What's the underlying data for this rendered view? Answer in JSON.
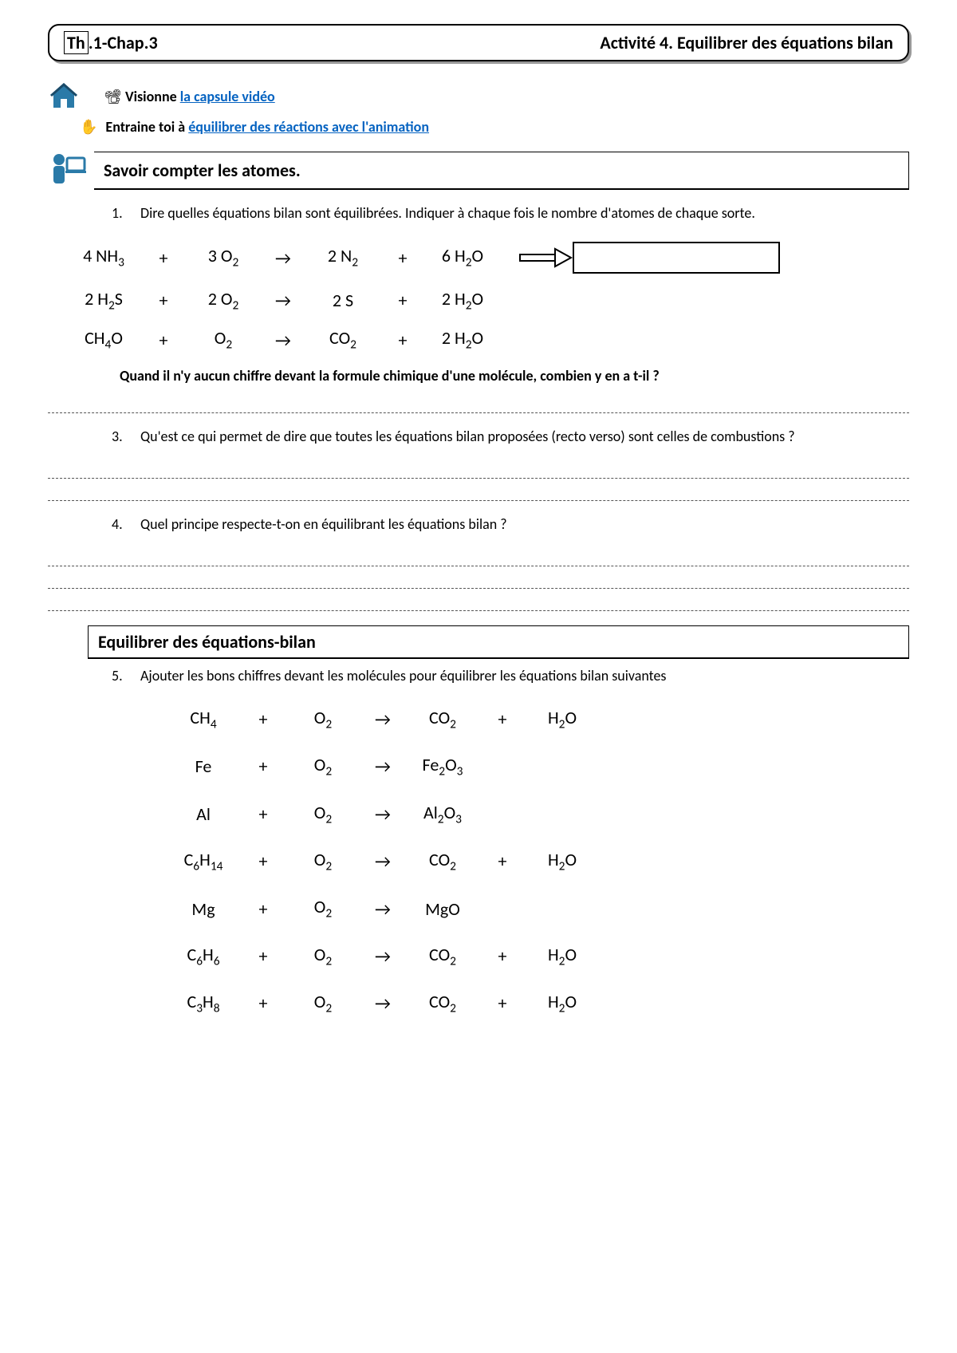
{
  "header": {
    "chapter_prefix": "Th",
    "chapter_suffix": ".1-Chap.3",
    "activity_title": "Activité 4. Equilibrer des équations bilan"
  },
  "intro": {
    "line1_prefix": "Visionne ",
    "link1": "la capsule vidéo",
    "line2_prefix": "Entraine toi à ",
    "link2": "équilibrer des réactions avec l'animation"
  },
  "section1": {
    "heading": "Savoir compter les atomes.",
    "q1_num": "1.",
    "q1_text": "Dire quelles équations bilan sont équilibrées. Indiquer à chaque fois le nombre d'atomes de chaque sorte.",
    "equations": [
      {
        "r1_coef": "4",
        "r1": "NH",
        "r1_sub": "3",
        "r2_coef": "3",
        "r2": "O",
        "r2_sub": "2",
        "p1_coef": "2",
        "p1": "N",
        "p1_sub": "2",
        "p2_coef": "6",
        "p2": "H",
        "p2_sub": "2",
        "p2_suffix": "O",
        "has_box": true
      },
      {
        "r1_coef": "2",
        "r1": "H",
        "r1_sub": "2",
        "r1_suffix": "S",
        "r2_coef": "2",
        "r2": "O",
        "r2_sub": "2",
        "p1_coef": "2",
        "p1": "S",
        "p1_sub": "",
        "p2_coef": "2",
        "p2": "H",
        "p2_sub": "2",
        "p2_suffix": "O",
        "has_box": false
      },
      {
        "r1_coef": "",
        "r1": "CH",
        "r1_sub": "4",
        "r1_suffix": "O",
        "r2_coef": "",
        "r2": "O",
        "r2_sub": "2",
        "p1_coef": "",
        "p1": "CO",
        "p1_sub": "2",
        "p2_coef": "2",
        "p2": "H",
        "p2_sub": "2",
        "p2_suffix": "O",
        "has_box": false
      }
    ],
    "note": "Quand il n'y aucun chiffre devant la formule chimique d'une molécule, combien y en a t-il ?",
    "q3_num": "3.",
    "q3_text": "Qu'est ce qui permet de dire que toutes les équations bilan proposées (recto verso) sont celles de combustions ?",
    "q4_num": "4.",
    "q4_text": "Quel principe respecte-t-on en équilibrant les équations bilan ?"
  },
  "section2": {
    "heading": "Equilibrer des équations-bilan",
    "q5_num": "5.",
    "q5_text": "Ajouter les bons chiffres devant les molécules pour équilibrer les équations bilan suivantes",
    "equations": [
      {
        "r1": "CH",
        "r1_sub": "4",
        "r2": "O",
        "r2_sub": "2",
        "p1": "CO",
        "p1_sub": "2",
        "plus2": "+",
        "p2": "H",
        "p2_sub": "2",
        "p2_suffix": "O"
      },
      {
        "r1": "Fe",
        "r1_sub": "",
        "r2": "O",
        "r2_sub": "2",
        "p1": "Fe",
        "p1_sub": "2",
        "p1_mid": "O",
        "p1_sub2": "3",
        "plus2": "",
        "p2": "",
        "p2_sub": "",
        "p2_suffix": ""
      },
      {
        "r1": "Al",
        "r1_sub": "",
        "r2": "O",
        "r2_sub": "2",
        "p1": "Al",
        "p1_sub": "2",
        "p1_mid": "O",
        "p1_sub2": "3",
        "plus2": "",
        "p2": "",
        "p2_sub": "",
        "p2_suffix": ""
      },
      {
        "r1": "C",
        "r1_sub": "6",
        "r1_mid": "H",
        "r1_sub2": "14",
        "r2": "O",
        "r2_sub": "2",
        "p1": "CO",
        "p1_sub": "2",
        "plus2": "+",
        "p2": "H",
        "p2_sub": "2",
        "p2_suffix": "O"
      },
      {
        "r1": "Mg",
        "r1_sub": "",
        "r2": "O",
        "r2_sub": "2",
        "p1": "MgO",
        "p1_sub": "",
        "plus2": "",
        "p2": "",
        "p2_sub": "",
        "p2_suffix": ""
      },
      {
        "r1": "C",
        "r1_sub": "6",
        "r1_mid": "H",
        "r1_sub2": "6",
        "r2": "O",
        "r2_sub": "2",
        "p1": "CO",
        "p1_sub": "2",
        "plus2": "+",
        "p2": "H",
        "p2_sub": "2",
        "p2_suffix": "O"
      },
      {
        "r1": "C",
        "r1_sub": "3",
        "r1_mid": "H",
        "r1_sub2": "8",
        "r2": "O",
        "r2_sub": "2",
        "p1": "CO",
        "p1_sub": "2",
        "plus2": "+",
        "p2": "H",
        "p2_sub": "2",
        "p2_suffix": "O"
      }
    ]
  },
  "symbols": {
    "plus": "+",
    "arrow": "→"
  },
  "colors": {
    "text": "#000000",
    "link": "#0563c1",
    "icon": "#2a7aa8",
    "dash": "#555555"
  }
}
